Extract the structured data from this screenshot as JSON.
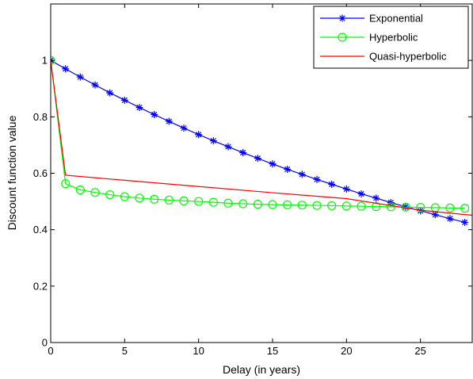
{
  "chart_data": {
    "type": "line",
    "title": "",
    "xlabel": "Delay (in years)",
    "ylabel": "Discount function value",
    "xlim": [
      0,
      28.5
    ],
    "ylim": [
      0,
      1.2
    ],
    "xticks": [
      0,
      5,
      10,
      15,
      20,
      25
    ],
    "yticks": [
      0,
      0.2,
      0.4,
      0.6,
      0.8,
      1
    ],
    "ytick_labels": [
      "0",
      "0.2",
      "0.4",
      "0.6",
      "0.8",
      "1"
    ],
    "grid": false,
    "legend_position": "top-right",
    "series": [
      {
        "name": "Exponential",
        "color": "#0000ff",
        "marker": "asterisk",
        "x": [
          0,
          1,
          2,
          3,
          4,
          5,
          6,
          7,
          8,
          9,
          10,
          11,
          12,
          13,
          14,
          15,
          16,
          17,
          18,
          19,
          20,
          21,
          22,
          23,
          24,
          25,
          26,
          27,
          28
        ],
        "y": [
          1,
          0.97,
          0.941,
          0.913,
          0.885,
          0.859,
          0.833,
          0.808,
          0.784,
          0.76,
          0.737,
          0.715,
          0.694,
          0.673,
          0.653,
          0.633,
          0.614,
          0.596,
          0.578,
          0.561,
          0.544,
          0.527,
          0.512,
          0.496,
          0.481,
          0.467,
          0.453,
          0.439,
          0.426
        ]
      },
      {
        "name": "Hyperbolic",
        "color": "#00ff00",
        "marker": "circle",
        "x": [
          0,
          1,
          2,
          3,
          4,
          5,
          6,
          7,
          8,
          9,
          10,
          11,
          12,
          13,
          14,
          15,
          16,
          17,
          18,
          19,
          20,
          21,
          22,
          23,
          24,
          25,
          26,
          27,
          28
        ],
        "y": [
          1,
          0.563,
          0.541,
          0.532,
          0.524,
          0.517,
          0.512,
          0.508,
          0.505,
          0.502,
          0.5,
          0.497,
          0.494,
          0.492,
          0.49,
          0.489,
          0.488,
          0.487,
          0.486,
          0.485,
          0.484,
          0.483,
          0.482,
          0.481,
          0.48,
          0.479,
          0.478,
          0.477,
          0.476
        ]
      },
      {
        "name": "Quasi-hyperbolic",
        "color": "#ff0000",
        "marker": "none",
        "x": [
          0,
          1,
          5,
          10,
          15,
          20,
          25,
          28.5
        ],
        "y": [
          1,
          0.593,
          0.575,
          0.553,
          0.531,
          0.51,
          0.469,
          0.451
        ]
      }
    ]
  }
}
